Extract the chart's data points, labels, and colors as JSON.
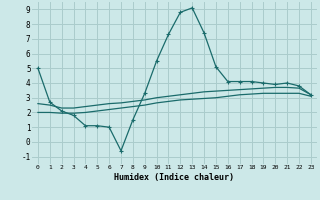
{
  "xlabel": "Humidex (Indice chaleur)",
  "background_color": "#cce8e8",
  "grid_color": "#aacccc",
  "line_color": "#1a6b6b",
  "xlim": [
    -0.5,
    23.5
  ],
  "ylim": [
    -1.5,
    9.5
  ],
  "xticks": [
    0,
    1,
    2,
    3,
    4,
    5,
    6,
    7,
    8,
    9,
    10,
    11,
    12,
    13,
    14,
    15,
    16,
    17,
    18,
    19,
    20,
    21,
    22,
    23
  ],
  "yticks": [
    -1,
    0,
    1,
    2,
    3,
    4,
    5,
    6,
    7,
    8,
    9
  ],
  "line1_x": [
    0,
    1,
    2,
    3,
    4,
    5,
    6,
    7,
    8,
    9,
    10,
    11,
    12,
    13,
    14,
    15,
    16,
    17,
    18,
    19,
    20,
    21,
    22,
    23
  ],
  "line1_y": [
    5,
    2.7,
    2.1,
    1.8,
    1.1,
    1.1,
    1.0,
    -0.6,
    1.5,
    3.3,
    5.5,
    7.3,
    8.8,
    9.1,
    7.4,
    5.1,
    4.1,
    4.1,
    4.1,
    4.0,
    3.9,
    4.0,
    3.8,
    3.2
  ],
  "line2_x": [
    0,
    1,
    2,
    3,
    4,
    5,
    6,
    7,
    8,
    9,
    10,
    11,
    12,
    13,
    14,
    15,
    16,
    17,
    18,
    19,
    20,
    21,
    22,
    23
  ],
  "line2_y": [
    2.6,
    2.5,
    2.3,
    2.3,
    2.4,
    2.5,
    2.6,
    2.65,
    2.75,
    2.85,
    3.0,
    3.1,
    3.2,
    3.3,
    3.4,
    3.45,
    3.5,
    3.55,
    3.6,
    3.65,
    3.7,
    3.7,
    3.65,
    3.2
  ],
  "line3_x": [
    0,
    1,
    2,
    3,
    4,
    5,
    6,
    7,
    8,
    9,
    10,
    11,
    12,
    13,
    14,
    15,
    16,
    17,
    18,
    19,
    20,
    21,
    22,
    23
  ],
  "line3_y": [
    2.0,
    2.0,
    1.95,
    1.95,
    2.0,
    2.1,
    2.2,
    2.3,
    2.4,
    2.5,
    2.65,
    2.75,
    2.85,
    2.9,
    2.95,
    3.0,
    3.1,
    3.2,
    3.25,
    3.3,
    3.3,
    3.3,
    3.3,
    3.1
  ]
}
